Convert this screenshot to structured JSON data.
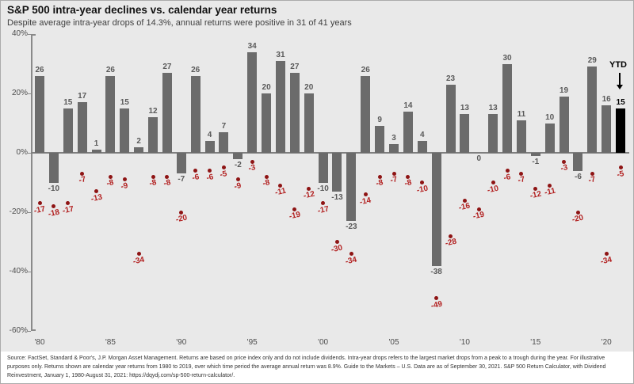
{
  "header": {
    "title": "S&P 500 intra-year declines vs. calendar year returns",
    "subtitle": "Despite average intra-year drops of 14.3%, annual returns were positive in 31 of 41 years"
  },
  "chart_data": {
    "type": "bar",
    "title": "S&P 500 intra-year declines vs. calendar year returns",
    "categories": [
      1980,
      1981,
      1982,
      1983,
      1984,
      1985,
      1986,
      1987,
      1988,
      1989,
      1990,
      1991,
      1992,
      1993,
      1994,
      1995,
      1996,
      1997,
      1998,
      1999,
      2000,
      2001,
      2002,
      2003,
      2004,
      2005,
      2006,
      2007,
      2008,
      2009,
      2010,
      2011,
      2012,
      2013,
      2014,
      2015,
      2016,
      2017,
      2018,
      2019,
      2020,
      2021
    ],
    "series": [
      {
        "name": "Calendar year return",
        "values": [
          26,
          -10,
          15,
          17,
          1,
          26,
          15,
          2,
          12,
          27,
          -7,
          26,
          4,
          7,
          -2,
          34,
          20,
          31,
          27,
          20,
          -10,
          -13,
          -23,
          26,
          9,
          3,
          14,
          4,
          -38,
          23,
          13,
          0,
          13,
          30,
          11,
          -1,
          10,
          19,
          -6,
          29,
          16,
          15
        ]
      },
      {
        "name": "Intra-year decline",
        "values": [
          -17,
          -18,
          -17,
          -7,
          -13,
          -8,
          -9,
          -34,
          -8,
          -8,
          -20,
          -6,
          -6,
          -5,
          -9,
          -3,
          -8,
          -11,
          -19,
          -12,
          -17,
          -30,
          -34,
          -14,
          -8,
          -7,
          -8,
          -10,
          -49,
          -28,
          -16,
          -19,
          -10,
          -6,
          -7,
          -12,
          -11,
          -3,
          -20,
          -7,
          -34,
          -5
        ]
      }
    ],
    "ytd": {
      "label": "YTD",
      "year": 2021,
      "value": 15
    },
    "ylim": [
      -60,
      40
    ],
    "grid": false,
    "legend": "none",
    "y_ticks": [
      {
        "value": 40,
        "label": "40%"
      },
      {
        "value": 20,
        "label": "20%"
      },
      {
        "value": 0,
        "label": "0%"
      },
      {
        "value": -20,
        "label": "-20%"
      },
      {
        "value": -40,
        "label": "-40%"
      },
      {
        "value": -60,
        "label": "-60%"
      }
    ],
    "x_ticks": [
      {
        "year": 1980,
        "label": "'80"
      },
      {
        "year": 1985,
        "label": "'85"
      },
      {
        "year": 1990,
        "label": "'90"
      },
      {
        "year": 1995,
        "label": "'95"
      },
      {
        "year": 2000,
        "label": "'00"
      },
      {
        "year": 2005,
        "label": "'05"
      },
      {
        "year": 2010,
        "label": "'10"
      },
      {
        "year": 2015,
        "label": "'15"
      },
      {
        "year": 2020,
        "label": "'20"
      }
    ],
    "colors": {
      "bar": "#6b6b6b",
      "ytd_bar": "#000000",
      "bar_label": "#5a5a5a",
      "decline_dot": "#8e1414",
      "decline_label": "#b21f1f",
      "plot_background": "#e9e9e9",
      "axis": "#7f7f7f"
    }
  },
  "footer": {
    "text": "Source: FactSet, Standard & Poor's, J.P. Morgan Asset Management.  Returns are based on price index only and do not include dividends. Intra-year drops refers to the largest market drops from a peak to a trough during the year. For illustrative purposes only. Returns shown are calendar year returns from 1980 to 2019, over which time period the average annual return was 8.9%.  Guide to the Markets – U.S. Data are as of September 30, 2021.  S&P 500 Return Calculator, with Dividend Reinvestment, January 1, 1980-August 31, 2021: https://dqydj.com/sp-500-return-calculator/."
  }
}
